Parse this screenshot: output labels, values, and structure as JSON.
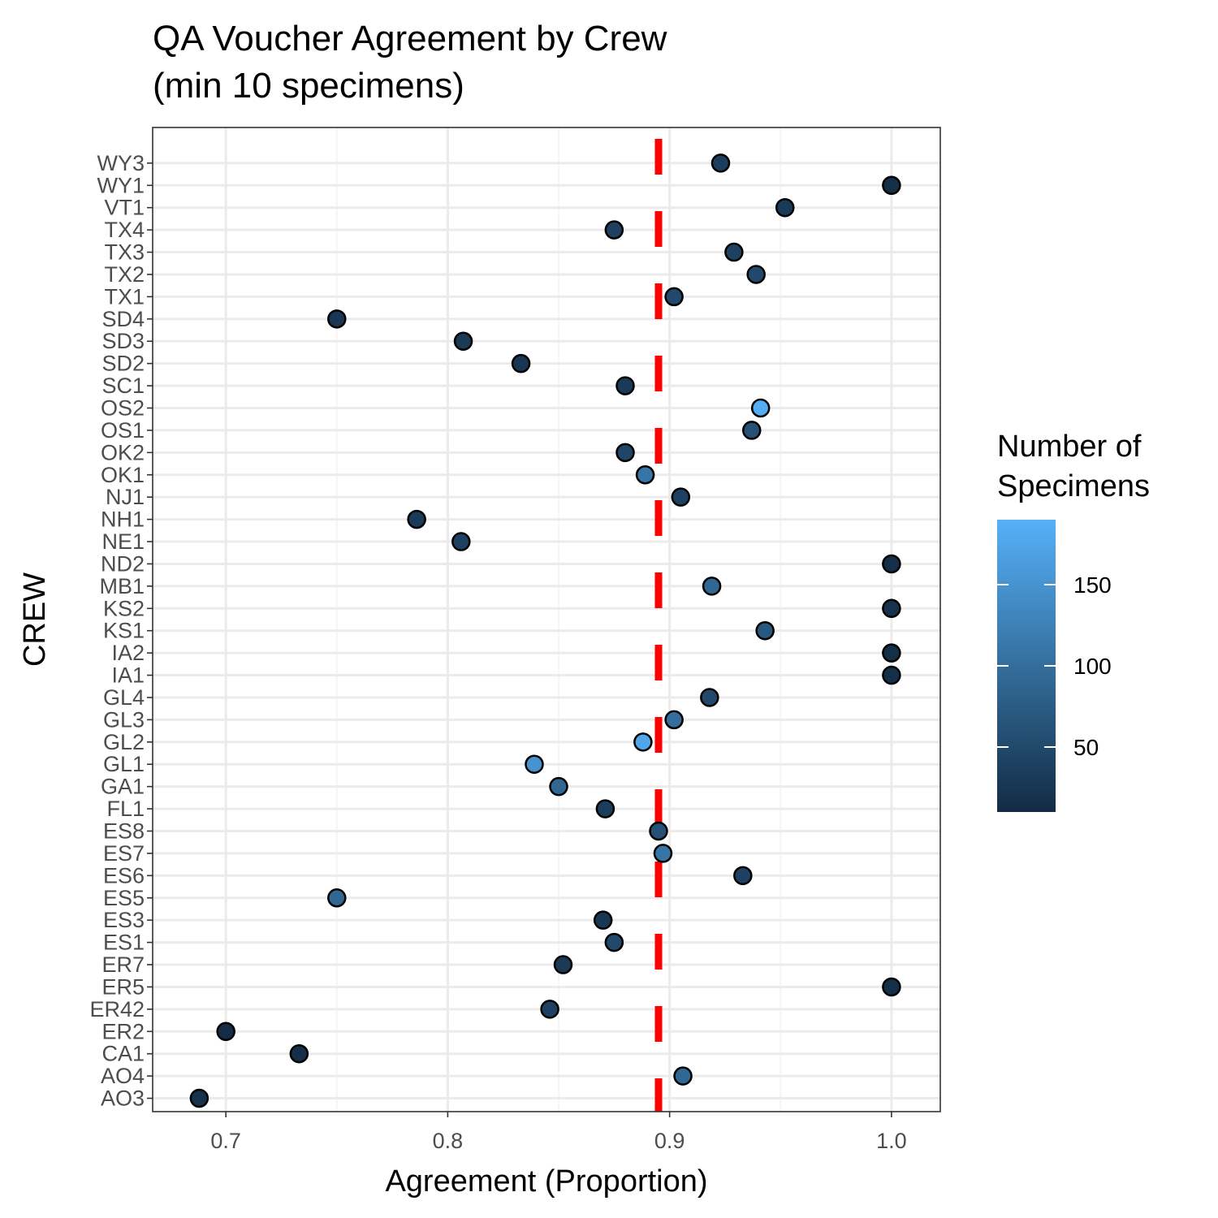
{
  "chart_data": {
    "type": "scatter",
    "title_line1": "QA Voucher Agreement by Crew",
    "title_line2": "(min 10 specimens)",
    "xlabel": "Agreement (Proportion)",
    "ylabel": "CREW",
    "xlim": [
      0.667,
      1.022
    ],
    "x_ticks": [
      0.7,
      0.8,
      0.9,
      1.0
    ],
    "x_tick_labels": [
      "0.7",
      "0.8",
      "0.9",
      "1.0"
    ],
    "reference_line": {
      "x": 0.895,
      "style": "dashed",
      "color": "#ff0000"
    },
    "legend": {
      "title_line1": "Number of",
      "title_line2": "Specimens",
      "range": [
        10,
        190
      ],
      "ticks": [
        50,
        100,
        150
      ],
      "tick_labels": [
        "50",
        "100",
        "150"
      ],
      "color_low": "#132b43",
      "color_high": "#56b1f7",
      "placement": "right"
    },
    "grid": true,
    "categories": [
      "AO3",
      "AO4",
      "CA1",
      "ER2",
      "ER42",
      "ER5",
      "ER7",
      "ES1",
      "ES3",
      "ES5",
      "ES6",
      "ES7",
      "ES8",
      "FL1",
      "GA1",
      "GL1",
      "GL2",
      "GL3",
      "GL4",
      "IA1",
      "IA2",
      "KS1",
      "KS2",
      "MB1",
      "ND2",
      "NE1",
      "NH1",
      "NJ1",
      "OK1",
      "OK2",
      "OS1",
      "OS2",
      "SC1",
      "SD2",
      "SD3",
      "SD4",
      "TX1",
      "TX2",
      "TX3",
      "TX4",
      "VT1",
      "WY1",
      "WY3"
    ],
    "points": [
      {
        "crew": "AO3",
        "agreement": 0.688,
        "specimens": 20
      },
      {
        "crew": "AO4",
        "agreement": 0.906,
        "specimens": 90
      },
      {
        "crew": "CA1",
        "agreement": 0.733,
        "specimens": 15
      },
      {
        "crew": "ER2",
        "agreement": 0.7,
        "specimens": 12
      },
      {
        "crew": "ER42",
        "agreement": 0.846,
        "specimens": 40
      },
      {
        "crew": "ER5",
        "agreement": 1.0,
        "specimens": 15
      },
      {
        "crew": "ER7",
        "agreement": 0.852,
        "specimens": 30
      },
      {
        "crew": "ES1",
        "agreement": 0.875,
        "specimens": 50
      },
      {
        "crew": "ES3",
        "agreement": 0.87,
        "specimens": 25
      },
      {
        "crew": "ES5",
        "agreement": 0.75,
        "specimens": 90
      },
      {
        "crew": "ES6",
        "agreement": 0.933,
        "specimens": 40
      },
      {
        "crew": "ES7",
        "agreement": 0.897,
        "specimens": 110
      },
      {
        "crew": "ES8",
        "agreement": 0.895,
        "specimens": 60
      },
      {
        "crew": "FL1",
        "agreement": 0.871,
        "specimens": 35
      },
      {
        "crew": "GA1",
        "agreement": 0.85,
        "specimens": 90
      },
      {
        "crew": "GL1",
        "agreement": 0.839,
        "specimens": 150
      },
      {
        "crew": "GL2",
        "agreement": 0.888,
        "specimens": 175
      },
      {
        "crew": "GL3",
        "agreement": 0.902,
        "specimens": 100
      },
      {
        "crew": "GL4",
        "agreement": 0.918,
        "specimens": 50
      },
      {
        "crew": "IA1",
        "agreement": 1.0,
        "specimens": 15
      },
      {
        "crew": "IA2",
        "agreement": 1.0,
        "specimens": 15
      },
      {
        "crew": "KS1",
        "agreement": 0.943,
        "specimens": 70
      },
      {
        "crew": "KS2",
        "agreement": 1.0,
        "specimens": 20
      },
      {
        "crew": "MB1",
        "agreement": 0.919,
        "specimens": 90
      },
      {
        "crew": "ND2",
        "agreement": 1.0,
        "specimens": 15
      },
      {
        "crew": "NE1",
        "agreement": 0.806,
        "specimens": 40
      },
      {
        "crew": "NH1",
        "agreement": 0.786,
        "specimens": 30
      },
      {
        "crew": "NJ1",
        "agreement": 0.905,
        "specimens": 40
      },
      {
        "crew": "OK1",
        "agreement": 0.889,
        "specimens": 110
      },
      {
        "crew": "OK2",
        "agreement": 0.88,
        "specimens": 45
      },
      {
        "crew": "OS1",
        "agreement": 0.937,
        "specimens": 60
      },
      {
        "crew": "OS2",
        "agreement": 0.941,
        "specimens": 185
      },
      {
        "crew": "SC1",
        "agreement": 0.88,
        "specimens": 30
      },
      {
        "crew": "SD2",
        "agreement": 0.833,
        "specimens": 25
      },
      {
        "crew": "SD3",
        "agreement": 0.807,
        "specimens": 30
      },
      {
        "crew": "SD4",
        "agreement": 0.75,
        "specimens": 25
      },
      {
        "crew": "TX1",
        "agreement": 0.902,
        "specimens": 50
      },
      {
        "crew": "TX2",
        "agreement": 0.939,
        "specimens": 50
      },
      {
        "crew": "TX3",
        "agreement": 0.929,
        "specimens": 40
      },
      {
        "crew": "TX4",
        "agreement": 0.875,
        "specimens": 40
      },
      {
        "crew": "VT1",
        "agreement": 0.952,
        "specimens": 30
      },
      {
        "crew": "WY1",
        "agreement": 1.0,
        "specimens": 15
      },
      {
        "crew": "WY3",
        "agreement": 0.923,
        "specimens": 35
      }
    ]
  }
}
